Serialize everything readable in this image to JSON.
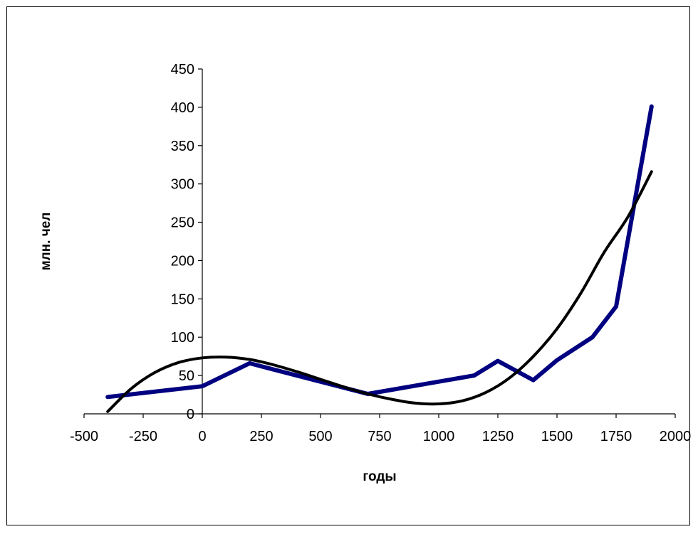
{
  "chart_data": {
    "type": "line",
    "title": "",
    "xlabel": "годы",
    "ylabel": "млн. чел",
    "xlim": [
      -500,
      2000
    ],
    "ylim": [
      0,
      450
    ],
    "x_ticks": [
      -500,
      -250,
      0,
      250,
      500,
      750,
      1000,
      1250,
      1500,
      1750,
      2000
    ],
    "y_ticks": [
      0,
      50,
      100,
      150,
      200,
      250,
      300,
      350,
      400,
      450
    ],
    "grid": false,
    "legend": "none",
    "series": [
      {
        "color": "#000080",
        "x": [
          -400,
          0,
          200,
          700,
          1150,
          1250,
          1400,
          1500,
          1650,
          1750,
          1900
        ],
        "y": [
          22,
          36,
          66,
          26,
          50,
          69,
          44,
          70,
          100,
          140,
          401
        ]
      },
      {
        "color": "#000000",
        "x": [
          -400,
          -300,
          -200,
          -100,
          0,
          100,
          200,
          300,
          400,
          500,
          600,
          700,
          800,
          900,
          1000,
          1100,
          1200,
          1300,
          1400,
          1500,
          1600,
          1700,
          1800,
          1900
        ],
        "y": [
          3,
          33,
          54,
          67,
          73,
          74,
          71,
          64,
          55,
          45,
          35,
          26,
          19,
          14,
          13,
          17,
          28,
          47,
          75,
          111,
          157,
          211,
          257,
          316
        ]
      }
    ]
  }
}
